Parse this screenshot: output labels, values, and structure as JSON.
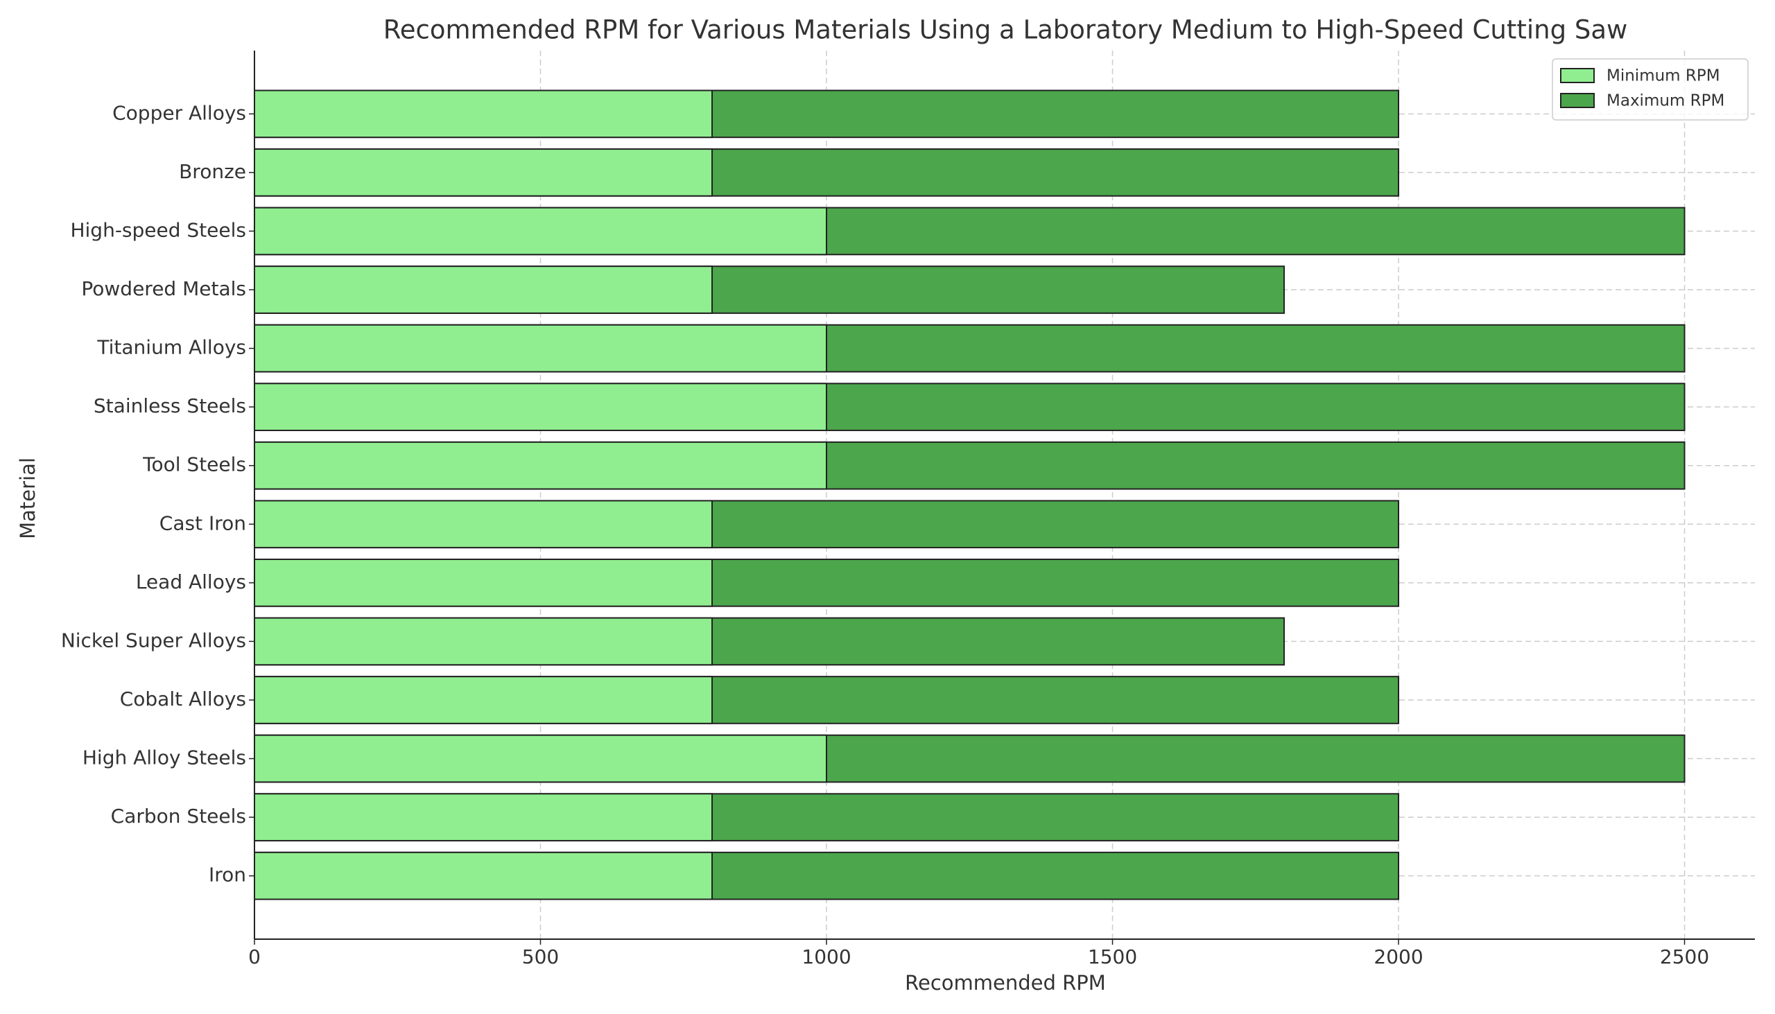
{
  "chart_data": {
    "type": "barh-range",
    "title": "Recommended RPM for Various Materials Using a Laboratory Medium to High-Speed Cutting Saw",
    "x_label": "Recommended RPM",
    "y_label": "Material",
    "categories": [
      "Iron",
      "Carbon Steels",
      "High Alloy Steels",
      "Cobalt Alloys",
      "Nickel Super Alloys",
      "Lead Alloys",
      "Cast Iron",
      "Tool Steels",
      "Stainless Steels",
      "Titanium Alloys",
      "Powdered Metals",
      "High-speed Steels",
      "Bronze",
      "Copper Alloys"
    ],
    "series": [
      {
        "name": "Minimum RPM",
        "color": "#90ee90",
        "values": [
          800,
          800,
          1000,
          800,
          800,
          800,
          800,
          1000,
          1000,
          1000,
          800,
          1000,
          800,
          800
        ]
      },
      {
        "name": "Maximum RPM",
        "color": "#4ca64c",
        "values": [
          2000,
          2000,
          2500,
          2000,
          1800,
          2000,
          2000,
          2500,
          2500,
          2500,
          1800,
          2500,
          2000,
          2000
        ]
      }
    ],
    "xlim": [
      0,
      2623
    ],
    "xticks": [
      0,
      500,
      1000,
      1500,
      2000,
      2500
    ],
    "grid": true,
    "legend": "upper right"
  }
}
